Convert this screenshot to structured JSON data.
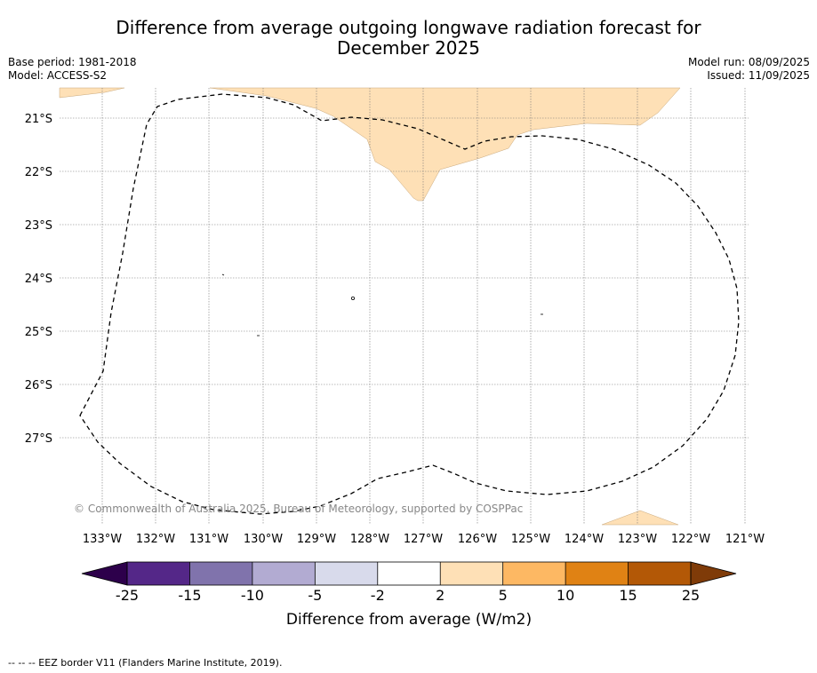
{
  "title_line1": "Difference from average outgoing longwave radiation forecast for",
  "title_line2": "December 2025",
  "base_period": "Base period: 1981-2018",
  "model": "Model: ACCESS-S2",
  "model_run": "Model run: 08/09/2025",
  "issued": "Issued: 11/09/2025",
  "copyright": "© Commonwealth of Australia 2025, Bureau of Meteorology, supported by COSPPac",
  "map": {
    "lat_labels": [
      "21°S",
      "22°S",
      "23°S",
      "24°S",
      "25°S",
      "26°S",
      "27°S"
    ],
    "lon_labels": [
      "133°W",
      "132°W",
      "131°W",
      "130°W",
      "129°W",
      "128°W",
      "127°W",
      "126°W",
      "125°W",
      "124°W",
      "123°W",
      "122°W",
      "121°W"
    ]
  },
  "colorbar": {
    "label": "Difference from average (W/m2)",
    "ticks": [
      "-25",
      "-15",
      "-10",
      "-5",
      "-2",
      "2",
      "5",
      "10",
      "15",
      "25"
    ],
    "colors": [
      "#542788",
      "#8073ac",
      "#b2abd2",
      "#d8daeb",
      "#ffffff",
      "#fee0b6",
      "#fdb863",
      "#e08214",
      "#b35806"
    ],
    "under_color": "#2d004b",
    "over_color": "#7f3b08",
    "map_fill_color": "#fee0b6"
  },
  "footer": "--  --  -- EEZ border V11 (Flanders Marine Institute, 2019)."
}
